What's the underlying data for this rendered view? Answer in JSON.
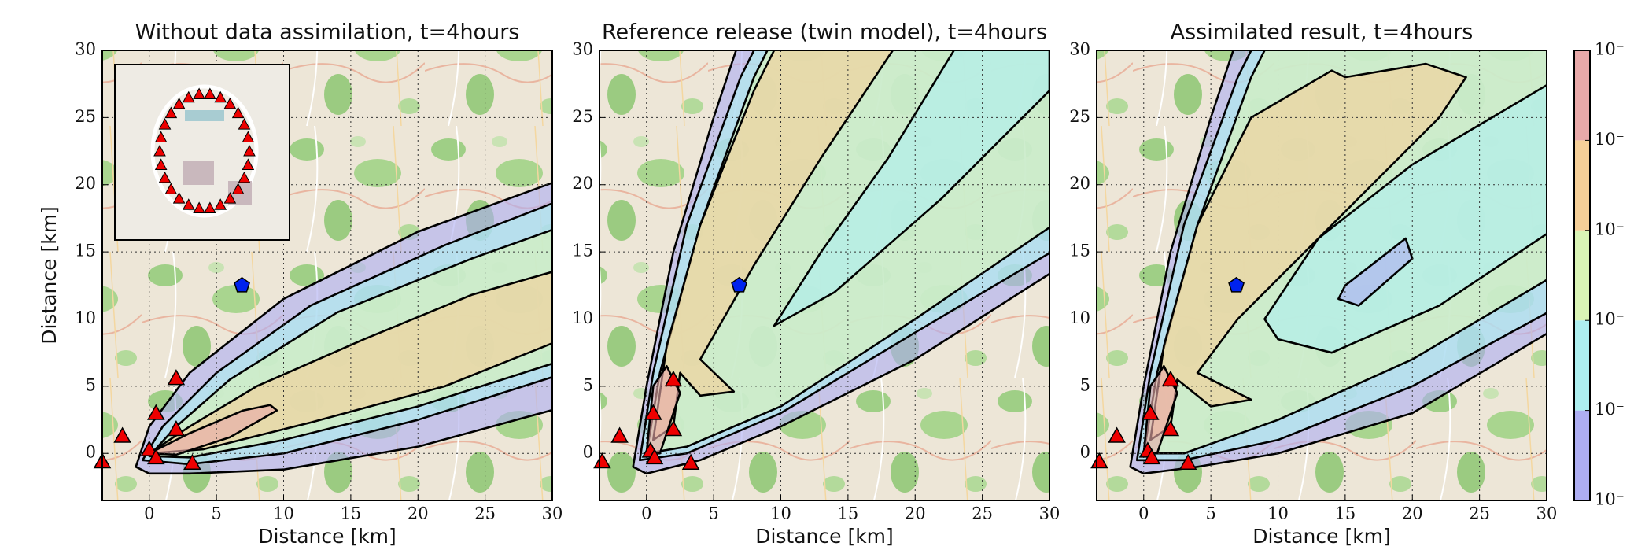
{
  "chart_data": [
    {
      "type": "contour",
      "title": "Without data assimilation, t=4hours",
      "xlabel": "Distance [km]",
      "ylabel": "Distance [km]",
      "xlim": [
        -3.5,
        30
      ],
      "ylim": [
        -3.5,
        30
      ],
      "xticks": [
        0,
        5,
        10,
        15,
        20,
        25,
        30
      ],
      "yticks": [
        0,
        5,
        10,
        15,
        20,
        25,
        30
      ],
      "grid": true,
      "sensors": {
        "x": [
          -3.5,
          -2,
          0.5,
          2,
          2,
          3.2,
          0,
          0.5
        ],
        "y": [
          -0.6,
          1.3,
          3,
          5.6,
          1.8,
          -0.7,
          0.3,
          -0.3
        ],
        "color": "#ee0000"
      },
      "source": {
        "x": 6.9,
        "y": 12.5,
        "color": "#0022ee"
      }
    },
    {
      "type": "contour",
      "title": "Reference release (twin model), t=4hours",
      "xlabel": "Distance [km]",
      "xlim": [
        -3.5,
        30
      ],
      "ylim": [
        -3.5,
        30
      ],
      "xticks": [
        0,
        5,
        10,
        15,
        20,
        25,
        30
      ],
      "yticks": [
        0,
        5,
        10,
        15,
        20,
        25,
        30
      ],
      "grid": true,
      "sensors": {
        "x": [
          -3.3,
          -2,
          0.5,
          2,
          2,
          3.3,
          0.3,
          0.6
        ],
        "y": [
          -0.6,
          1.3,
          3,
          5.5,
          1.8,
          -0.7,
          0.2,
          -0.3
        ],
        "color": "#ee0000"
      },
      "source": {
        "x": 6.9,
        "y": 12.5,
        "color": "#0022ee"
      }
    },
    {
      "type": "contour",
      "title": "Assimilated result, t=4hours",
      "xlabel": "Distance [km]",
      "xlim": [
        -3.5,
        30
      ],
      "ylim": [
        -3.5,
        30
      ],
      "xticks": [
        0,
        5,
        10,
        15,
        20,
        25,
        30
      ],
      "yticks": [
        0,
        5,
        10,
        15,
        20,
        25,
        30
      ],
      "grid": true,
      "sensors": {
        "x": [
          -3.3,
          -2,
          0.5,
          2,
          2,
          3.3,
          0.3,
          0.6
        ],
        "y": [
          -0.6,
          1.3,
          3,
          5.5,
          1.8,
          -0.7,
          0.2,
          -0.3
        ],
        "color": "#ee0000"
      },
      "source": {
        "x": 6.9,
        "y": 12.5,
        "color": "#0022ee"
      }
    },
    {
      "type": "colorbar",
      "tick_labels": [
        "10⁻",
        "10⁻",
        "10⁻",
        "10⁻",
        "10⁻",
        "10⁻"
      ],
      "colors": [
        "#aeaef2",
        "#aeeff0",
        "#daf4b6",
        "#f5cf98",
        "#e8a9a9"
      ]
    }
  ]
}
